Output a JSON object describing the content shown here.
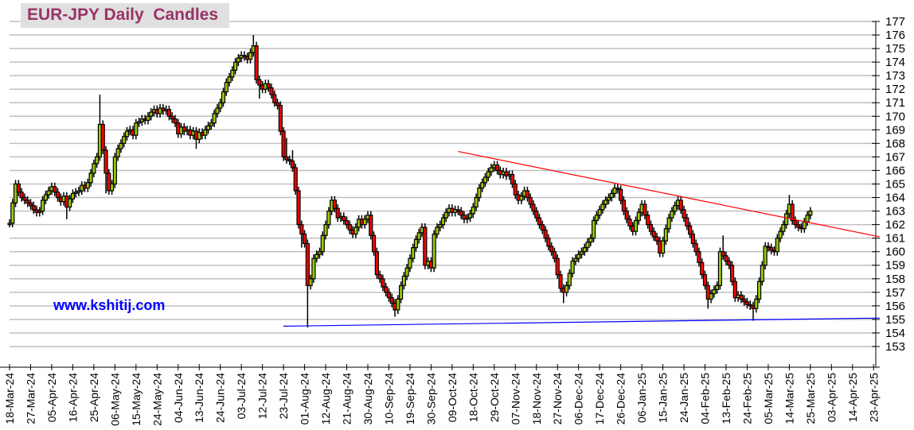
{
  "chart_data": {
    "type": "candlestick",
    "title": "EUR-JPY Daily  Candles",
    "watermark": "www.kshitij.com",
    "ylim": [
      153,
      177
    ],
    "y_ticks": [
      153,
      154,
      155,
      156,
      157,
      158,
      159,
      160,
      161,
      162,
      163,
      164,
      165,
      166,
      167,
      168,
      169,
      170,
      171,
      172,
      173,
      174,
      175,
      176,
      177
    ],
    "y_axis_side": "right",
    "grid": true,
    "frequency": "daily (weekdays)",
    "first_date": "18-Mar-24",
    "x_tick_labels": [
      "18-Mar-24",
      "27-Mar-24",
      "05-Apr-24",
      "16-Apr-24",
      "25-Apr-24",
      "06-May-24",
      "15-May-24",
      "24-May-24",
      "04-Jun-24",
      "13-Jun-24",
      "24-Jun-24",
      "03-Jul-24",
      "12-Jul-24",
      "23-Jul-24",
      "01-Aug-24",
      "12-Aug-24",
      "21-Aug-24",
      "30-Aug-24",
      "10-Sep-24",
      "19-Sep-24",
      "30-Sep-24",
      "09-Oct-24",
      "18-Oct-24",
      "29-Oct-24",
      "07-Nov-24",
      "18-Nov-24",
      "27-Nov-24",
      "06-Dec-24",
      "17-Dec-24",
      "26-Dec-24",
      "06-Jan-25",
      "15-Jan-25",
      "24-Jan-25",
      "04-Feb-25",
      "13-Feb-25",
      "24-Feb-25",
      "05-Mar-25",
      "14-Mar-25",
      "25-Mar-25",
      "03-Apr-25",
      "14-Apr-25",
      "23-Apr-25"
    ],
    "colors": {
      "up": "#99cc00",
      "down": "#ff0000",
      "outline": "#000000",
      "grid": "#c0c0c0",
      "title": "#993366",
      "watermark": "#0000ff"
    },
    "trendlines": [
      {
        "color": "#ff0000",
        "start": {
          "date": "11-Oct-24",
          "value": 167.4
        },
        "end": {
          "date": "25-Apr-25",
          "value": 161.1
        }
      },
      {
        "color": "#0000ff",
        "start": {
          "date": "23-Jul-24",
          "value": 154.5
        },
        "end": {
          "date": "25-Apr-25",
          "value": 155.1
        }
      }
    ],
    "close": [
      162.1,
      163.6,
      165.0,
      164.4,
      164.0,
      163.8,
      163.6,
      163.4,
      163.1,
      162.9,
      163.0,
      163.8,
      164.2,
      164.5,
      164.8,
      164.4,
      164.0,
      163.7,
      164.1,
      163.3,
      163.9,
      164.3,
      164.4,
      164.5,
      164.9,
      164.7,
      165.1,
      165.8,
      166.5,
      167.0,
      169.4,
      167.5,
      165.8,
      164.5,
      165.0,
      167.0,
      167.6,
      168.0,
      168.5,
      168.9,
      169.0,
      168.6,
      169.5,
      169.6,
      169.8,
      169.7,
      170.0,
      170.3,
      170.5,
      170.2,
      170.6,
      170.4,
      170.5,
      170.0,
      169.8,
      169.5,
      168.7,
      169.2,
      168.9,
      169.0,
      168.6,
      168.9,
      168.3,
      168.8,
      168.6,
      169.0,
      169.3,
      169.5,
      170.2,
      170.6,
      171.0,
      171.8,
      172.5,
      172.9,
      173.4,
      174.0,
      174.3,
      174.5,
      174.4,
      174.2,
      174.7,
      175.2,
      172.7,
      172.3,
      172.0,
      172.4,
      172.1,
      171.6,
      171.0,
      170.8,
      168.9,
      167.0,
      166.8,
      166.7,
      166.2,
      164.5,
      162.0,
      161.3,
      160.6,
      157.5,
      158.0,
      159.5,
      159.8,
      160.0,
      161.2,
      162.0,
      163.0,
      163.8,
      163.2,
      162.5,
      162.6,
      162.3,
      162.0,
      161.6,
      161.3,
      161.8,
      162.4,
      162.0,
      162.4,
      162.7,
      161.2,
      160.0,
      158.3,
      158.0,
      157.4,
      157.0,
      156.6,
      156.2,
      155.7,
      156.5,
      157.5,
      158.2,
      158.8,
      159.5,
      160.3,
      160.9,
      161.4,
      161.8,
      159.0,
      159.3,
      158.8,
      161.3,
      161.8,
      162.0,
      162.5,
      162.9,
      163.2,
      162.9,
      163.1,
      163.0,
      162.7,
      162.4,
      162.5,
      162.8,
      163.3,
      164.0,
      164.7,
      165.1,
      165.5,
      165.9,
      166.2,
      166.4,
      166.0,
      165.7,
      165.9,
      165.6,
      165.7,
      165.0,
      164.2,
      163.8,
      164.1,
      164.5,
      164.0,
      163.5,
      163.0,
      162.5,
      162.0,
      161.6,
      161.0,
      160.4,
      160.0,
      159.5,
      158.3,
      157.3,
      157.0,
      157.5,
      158.4,
      159.3,
      159.5,
      159.8,
      160.0,
      160.3,
      160.7,
      161.0,
      162.3,
      162.7,
      163.1,
      163.5,
      163.8,
      164.0,
      164.3,
      164.7,
      164.6,
      163.8,
      163.0,
      162.4,
      161.9,
      161.5,
      162.3,
      162.9,
      163.5,
      162.7,
      162.0,
      161.5,
      161.1,
      160.8,
      159.9,
      160.8,
      161.7,
      162.5,
      163.0,
      163.4,
      163.8,
      163.1,
      162.5,
      161.9,
      161.3,
      160.6,
      160.0,
      159.2,
      158.3,
      157.5,
      156.5,
      156.9,
      157.2,
      157.5,
      160.0,
      159.7,
      159.3,
      159.0,
      157.8,
      156.6,
      156.8,
      156.5,
      156.3,
      156.1,
      156.0,
      155.8,
      156.5,
      157.8,
      159.0,
      160.4,
      160.3,
      160.1,
      160.0,
      161.0,
      161.5,
      162.0,
      162.8,
      163.5,
      162.3,
      162.0,
      161.8,
      161.7,
      162.2,
      162.7,
      163.0
    ],
    "high": [
      162.4,
      163.9,
      165.3,
      165.3,
      164.7,
      164.3,
      164.1,
      163.9,
      163.7,
      163.4,
      163.3,
      164.1,
      164.5,
      164.8,
      165.1,
      165.1,
      164.7,
      164.3,
      164.4,
      164.4,
      164.2,
      164.6,
      164.7,
      164.8,
      165.2,
      165.2,
      165.4,
      166.1,
      166.8,
      167.3,
      171.6,
      169.7,
      167.8,
      166.1,
      165.3,
      167.3,
      167.9,
      168.3,
      168.8,
      169.2,
      169.3,
      169.3,
      169.8,
      169.9,
      170.1,
      170.1,
      170.3,
      170.6,
      170.8,
      170.8,
      170.9,
      170.9,
      170.8,
      170.8,
      170.3,
      170.1,
      169.8,
      169.5,
      169.5,
      169.3,
      169.3,
      169.2,
      169.2,
      169.1,
      169.1,
      169.3,
      169.6,
      169.8,
      170.5,
      170.9,
      171.3,
      172.1,
      172.8,
      173.2,
      173.7,
      174.3,
      174.6,
      174.8,
      174.8,
      174.7,
      175.0,
      176.0,
      175.5,
      173.0,
      172.6,
      172.7,
      172.7,
      172.4,
      171.9,
      171.3,
      171.1,
      169.2,
      168.4,
      167.1,
      167.5,
      166.5,
      164.8,
      162.3,
      161.6,
      160.9,
      158.3,
      159.8,
      160.1,
      160.3,
      161.5,
      162.3,
      163.3,
      164.1,
      164.1,
      163.5,
      162.9,
      162.9,
      162.6,
      162.3,
      161.9,
      162.1,
      162.7,
      162.7,
      162.7,
      163.0,
      163.0,
      161.5,
      160.3,
      158.6,
      158.3,
      157.7,
      157.3,
      156.9,
      156.5,
      156.8,
      157.8,
      158.5,
      159.1,
      159.8,
      160.6,
      161.2,
      161.7,
      162.1,
      162.1,
      159.6,
      159.6,
      161.6,
      162.1,
      162.3,
      162.8,
      163.2,
      163.5,
      163.5,
      163.4,
      163.4,
      163.3,
      163.0,
      162.8,
      163.1,
      163.6,
      164.3,
      165.0,
      165.4,
      165.8,
      166.2,
      166.5,
      166.7,
      166.7,
      166.3,
      166.2,
      166.2,
      166.0,
      166.0,
      165.3,
      164.5,
      164.4,
      164.8,
      164.8,
      164.3,
      163.8,
      163.3,
      162.8,
      162.3,
      161.9,
      161.3,
      160.7,
      160.3,
      159.8,
      158.6,
      157.6,
      157.8,
      158.7,
      159.6,
      159.8,
      160.1,
      160.3,
      160.6,
      161.0,
      161.3,
      162.6,
      163.0,
      163.4,
      163.8,
      164.1,
      164.3,
      164.6,
      165.0,
      165.0,
      164.9,
      164.1,
      163.3,
      162.7,
      162.2,
      162.6,
      163.2,
      163.8,
      163.8,
      163.0,
      162.3,
      161.8,
      161.4,
      161.1,
      161.1,
      162.0,
      162.8,
      163.3,
      163.7,
      164.1,
      164.1,
      163.4,
      162.8,
      162.2,
      161.6,
      160.9,
      160.3,
      159.5,
      158.6,
      157.8,
      157.2,
      157.5,
      157.8,
      160.3,
      161.2,
      160.0,
      159.6,
      159.3,
      158.1,
      157.1,
      157.1,
      156.8,
      156.6,
      156.4,
      156.3,
      156.8,
      158.1,
      159.3,
      160.7,
      160.7,
      160.6,
      160.4,
      161.3,
      161.8,
      162.3,
      163.1,
      164.2,
      163.8,
      162.6,
      162.3,
      162.1,
      162.5,
      163.0,
      163.3
    ],
    "low": [
      161.8,
      161.8,
      163.3,
      164.1,
      163.7,
      163.5,
      163.3,
      163.1,
      162.8,
      162.6,
      162.6,
      162.7,
      163.5,
      163.9,
      164.2,
      164.1,
      163.7,
      163.4,
      163.4,
      162.4,
      163.0,
      163.6,
      164.0,
      164.1,
      164.2,
      164.4,
      164.4,
      164.8,
      165.5,
      166.2,
      166.7,
      167.2,
      164.3,
      164.2,
      164.2,
      164.7,
      166.7,
      167.3,
      167.7,
      168.2,
      168.6,
      168.3,
      168.3,
      169.2,
      169.3,
      169.4,
      169.4,
      169.7,
      170.0,
      169.9,
      169.9,
      170.1,
      170.1,
      169.7,
      169.5,
      169.2,
      168.4,
      168.4,
      168.6,
      168.6,
      168.3,
      168.3,
      167.6,
      168.0,
      168.3,
      168.3,
      168.7,
      169.0,
      169.2,
      169.9,
      170.3,
      170.7,
      171.5,
      172.2,
      172.6,
      173.1,
      173.7,
      174.0,
      174.1,
      173.9,
      173.9,
      174.4,
      172.4,
      171.3,
      171.7,
      171.7,
      171.8,
      171.3,
      170.7,
      170.5,
      168.6,
      166.7,
      166.5,
      166.4,
      165.9,
      164.2,
      161.7,
      160.3,
      160.3,
      154.4,
      157.2,
      157.7,
      159.2,
      159.5,
      159.7,
      160.9,
      161.7,
      162.7,
      162.9,
      162.2,
      162.2,
      162.0,
      161.7,
      161.3,
      161.0,
      161.0,
      161.5,
      161.7,
      161.7,
      162.1,
      160.9,
      159.7,
      158.0,
      157.7,
      157.1,
      156.7,
      156.3,
      155.9,
      155.2,
      155.4,
      156.2,
      157.2,
      157.9,
      158.5,
      159.2,
      160.0,
      160.6,
      161.1,
      158.7,
      158.7,
      158.5,
      158.5,
      161.0,
      161.5,
      161.7,
      162.2,
      162.6,
      162.6,
      162.6,
      162.7,
      162.4,
      162.1,
      162.1,
      162.2,
      162.5,
      163.0,
      163.7,
      164.4,
      164.8,
      165.2,
      165.6,
      165.9,
      165.7,
      165.4,
      165.4,
      165.3,
      165.3,
      164.7,
      163.9,
      163.5,
      163.5,
      163.8,
      163.7,
      163.2,
      162.7,
      162.2,
      161.7,
      161.3,
      160.7,
      160.1,
      159.7,
      159.2,
      158.0,
      157.0,
      156.2,
      156.7,
      157.2,
      158.1,
      159.0,
      159.2,
      159.5,
      159.7,
      160.0,
      160.4,
      160.7,
      162.0,
      162.4,
      162.8,
      163.2,
      163.5,
      163.7,
      164.0,
      164.3,
      163.5,
      162.7,
      162.1,
      161.6,
      161.2,
      161.2,
      162.0,
      162.6,
      162.4,
      161.7,
      161.2,
      160.8,
      160.5,
      159.6,
      159.6,
      160.5,
      161.4,
      162.2,
      162.7,
      163.1,
      162.8,
      162.2,
      161.6,
      161.0,
      160.3,
      159.7,
      158.9,
      158.0,
      157.2,
      155.8,
      156.2,
      156.6,
      156.9,
      157.2,
      159.4,
      159.0,
      158.7,
      157.5,
      156.3,
      156.3,
      156.2,
      156.0,
      155.8,
      155.7,
      154.9,
      155.5,
      156.2,
      157.5,
      158.7,
      160.0,
      159.8,
      159.7,
      159.7,
      160.7,
      161.2,
      161.7,
      162.5,
      162.0,
      161.7,
      161.5,
      161.4,
      161.4,
      161.9,
      162.4
    ]
  }
}
